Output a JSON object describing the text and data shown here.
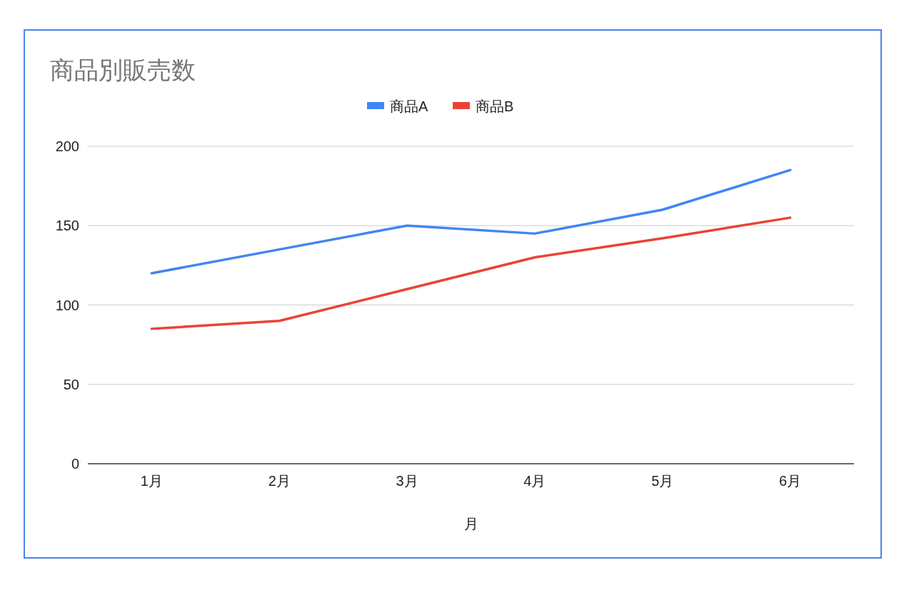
{
  "chart_data": {
    "type": "line",
    "title": "商品別販売数",
    "xlabel": "月",
    "categories": [
      "1月",
      "2月",
      "3月",
      "4月",
      "5月",
      "6月"
    ],
    "series": [
      {
        "name": "商品A",
        "color": "#4285f4",
        "values": [
          120,
          135,
          150,
          145,
          160,
          185
        ]
      },
      {
        "name": "商品B",
        "color": "#ea4335",
        "values": [
          85,
          90,
          110,
          130,
          142,
          155
        ]
      }
    ],
    "ylim": [
      0,
      200
    ],
    "yticks": [
      0,
      50,
      100,
      150,
      200
    ],
    "grid": "y",
    "legend": "top",
    "marker": "none",
    "line_style": "solid"
  }
}
